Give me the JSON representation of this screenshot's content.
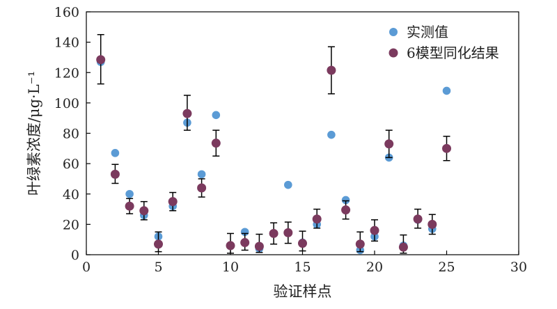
{
  "chart_data": {
    "type": "scatter",
    "title": "",
    "xlabel": "验证样点",
    "ylabel": "叶绿素浓度/μg·L⁻¹",
    "xlim": [
      0,
      30
    ],
    "ylim": [
      0,
      160
    ],
    "xticks": [
      0,
      5,
      10,
      15,
      20,
      25,
      30
    ],
    "yticks": [
      0,
      20,
      40,
      60,
      80,
      100,
      120,
      140,
      160
    ],
    "grid": false,
    "legend_position": "top-right",
    "series": [
      {
        "name": "实测值",
        "color": "#5b9bd5",
        "points": [
          {
            "x": 1,
            "y": 127
          },
          {
            "x": 2,
            "y": 67
          },
          {
            "x": 3,
            "y": 40
          },
          {
            "x": 4,
            "y": 26
          },
          {
            "x": 5,
            "y": 12
          },
          {
            "x": 6,
            "y": 32
          },
          {
            "x": 7,
            "y": 87
          },
          {
            "x": 8,
            "y": 53
          },
          {
            "x": 9,
            "y": 92
          },
          {
            "x": 10,
            "y": 6
          },
          {
            "x": 11,
            "y": 15
          },
          {
            "x": 12,
            "y": 4
          },
          {
            "x": 13,
            "y": 14
          },
          {
            "x": 14,
            "y": 46
          },
          {
            "x": 15,
            "y": 8
          },
          {
            "x": 16,
            "y": 20
          },
          {
            "x": 17,
            "y": 79
          },
          {
            "x": 18,
            "y": 36
          },
          {
            "x": 19,
            "y": 3
          },
          {
            "x": 20,
            "y": 12
          },
          {
            "x": 21,
            "y": 64
          },
          {
            "x": 22,
            "y": 6
          },
          {
            "x": 23,
            "y": 23
          },
          {
            "x": 24,
            "y": 17
          },
          {
            "x": 25,
            "y": 108
          }
        ]
      },
      {
        "name": "6模型同化结果",
        "color": "#7b3a5e",
        "points": [
          {
            "x": 1,
            "y": 128.5,
            "err_low": 16,
            "err_high": 16.5
          },
          {
            "x": 2,
            "y": 53,
            "err_low": 6,
            "err_high": 6.5
          },
          {
            "x": 3,
            "y": 32,
            "err_low": 5,
            "err_high": 5
          },
          {
            "x": 4,
            "y": 29,
            "err_low": 6,
            "err_high": 6
          },
          {
            "x": 5,
            "y": 7,
            "err_low": 5,
            "err_high": 8
          },
          {
            "x": 6,
            "y": 35,
            "err_low": 6,
            "err_high": 6
          },
          {
            "x": 7,
            "y": 93,
            "err_low": 11,
            "err_high": 12
          },
          {
            "x": 8,
            "y": 44,
            "err_low": 6,
            "err_high": 6
          },
          {
            "x": 9,
            "y": 73.5,
            "err_low": 8.5,
            "err_high": 8.5
          },
          {
            "x": 10,
            "y": 6,
            "err_low": 5,
            "err_high": 8
          },
          {
            "x": 11,
            "y": 8,
            "err_low": 5,
            "err_high": 6
          },
          {
            "x": 12,
            "y": 5.5,
            "err_low": 4,
            "err_high": 8
          },
          {
            "x": 13,
            "y": 14,
            "err_low": 7,
            "err_high": 7
          },
          {
            "x": 14,
            "y": 14.5,
            "err_low": 7,
            "err_high": 7
          },
          {
            "x": 15,
            "y": 7.5,
            "err_low": 5,
            "err_high": 8
          },
          {
            "x": 16,
            "y": 23.5,
            "err_low": 6,
            "err_high": 6.5
          },
          {
            "x": 17,
            "y": 121.5,
            "err_low": 15.5,
            "err_high": 15.5
          },
          {
            "x": 18,
            "y": 29.5,
            "err_low": 6,
            "err_high": 6
          },
          {
            "x": 19,
            "y": 7,
            "err_low": 5,
            "err_high": 8
          },
          {
            "x": 20,
            "y": 16,
            "err_low": 7,
            "err_high": 7
          },
          {
            "x": 21,
            "y": 73,
            "err_low": 9,
            "err_high": 9
          },
          {
            "x": 22,
            "y": 5,
            "err_low": 4,
            "err_high": 8
          },
          {
            "x": 23,
            "y": 23.5,
            "err_low": 6,
            "err_high": 6.5
          },
          {
            "x": 24,
            "y": 20,
            "err_low": 6.5,
            "err_high": 6.5
          },
          {
            "x": 25,
            "y": 70,
            "err_low": 8,
            "err_high": 8
          }
        ]
      }
    ]
  }
}
